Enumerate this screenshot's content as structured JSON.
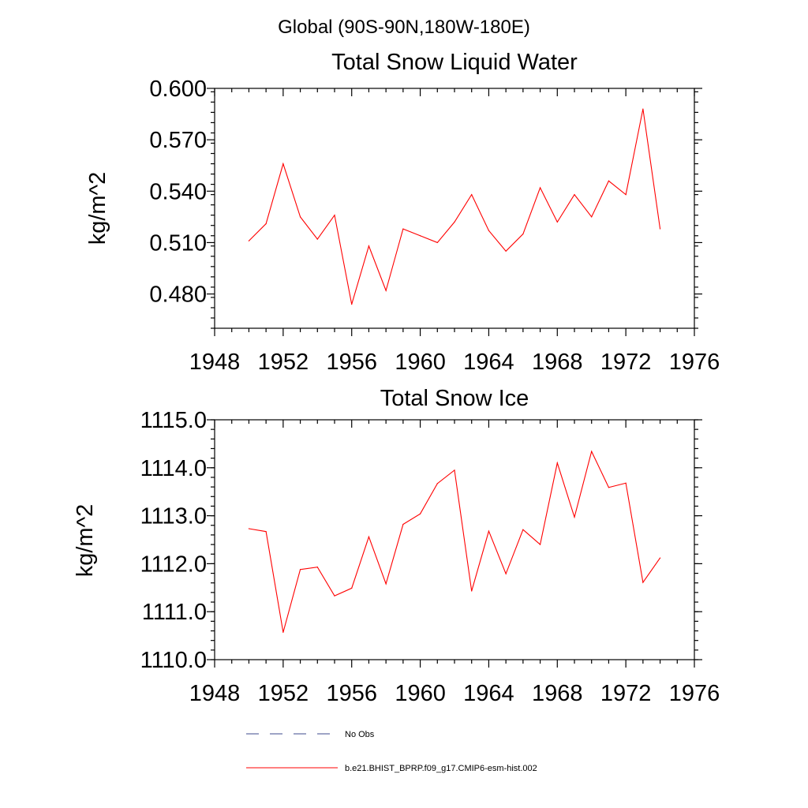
{
  "suptitle": "Global (90S-90N,180W-180E)",
  "colors": {
    "model": "#ff0000",
    "obs": "#3c4a8c",
    "axis": "#000000"
  },
  "chart_data": [
    {
      "type": "line",
      "title": "Total Snow Liquid Water",
      "xlabel": "",
      "ylabel": "kg/m^2",
      "xlim": [
        1948,
        1976
      ],
      "ylim": [
        0.46,
        0.6
      ],
      "x_ticks": [
        "1948",
        "1952",
        "1956",
        "1960",
        "1964",
        "1968",
        "1972",
        "1976"
      ],
      "y_ticks": [
        "0.480",
        "0.510",
        "0.540",
        "0.570",
        "0.600"
      ],
      "series": [
        {
          "name": "b.e21.BHIST_BPRP.f09_g17.CMIP6-esm-hist.002",
          "x": [
            1950,
            1951,
            1952,
            1953,
            1954,
            1955,
            1956,
            1957,
            1958,
            1959,
            1960,
            1961,
            1962,
            1963,
            1964,
            1965,
            1966,
            1967,
            1968,
            1969,
            1970,
            1971,
            1972,
            1973,
            1974
          ],
          "values": [
            0.511,
            0.521,
            0.556,
            0.525,
            0.512,
            0.526,
            0.474,
            0.508,
            0.482,
            0.518,
            0.514,
            0.51,
            0.522,
            0.538,
            0.517,
            0.505,
            0.515,
            0.542,
            0.522,
            0.538,
            0.525,
            0.546,
            0.538,
            0.588,
            0.518
          ]
        }
      ]
    },
    {
      "type": "line",
      "title": "Total Snow Ice",
      "xlabel": "",
      "ylabel": "kg/m^2",
      "xlim": [
        1948,
        1976
      ],
      "ylim": [
        1110.0,
        1115.0
      ],
      "x_ticks": [
        "1948",
        "1952",
        "1956",
        "1960",
        "1964",
        "1968",
        "1972",
        "1976"
      ],
      "y_ticks": [
        "1110.0",
        "1111.0",
        "1112.0",
        "1113.0",
        "1114.0",
        "1115.0"
      ],
      "series": [
        {
          "name": "b.e21.BHIST_BPRP.f09_g17.CMIP6-esm-hist.002",
          "x": [
            1950,
            1951,
            1952,
            1953,
            1954,
            1955,
            1956,
            1957,
            1958,
            1959,
            1960,
            1961,
            1962,
            1963,
            1964,
            1965,
            1966,
            1967,
            1968,
            1969,
            1970,
            1971,
            1972,
            1973,
            1974
          ],
          "values": [
            1112.73,
            1112.67,
            1110.57,
            1111.88,
            1111.93,
            1111.33,
            1111.49,
            1112.56,
            1111.58,
            1112.82,
            1113.04,
            1113.67,
            1113.95,
            1111.43,
            1112.68,
            1111.79,
            1112.71,
            1112.4,
            1114.1,
            1112.97,
            1114.34,
            1113.59,
            1113.68,
            1111.61,
            1112.12
          ]
        }
      ]
    }
  ],
  "legend": [
    {
      "label": "No Obs",
      "style": "dashed"
    },
    {
      "label": "b.e21.BHIST_BPRP.f09_g17.CMIP6-esm-hist.002",
      "style": "solid"
    }
  ]
}
